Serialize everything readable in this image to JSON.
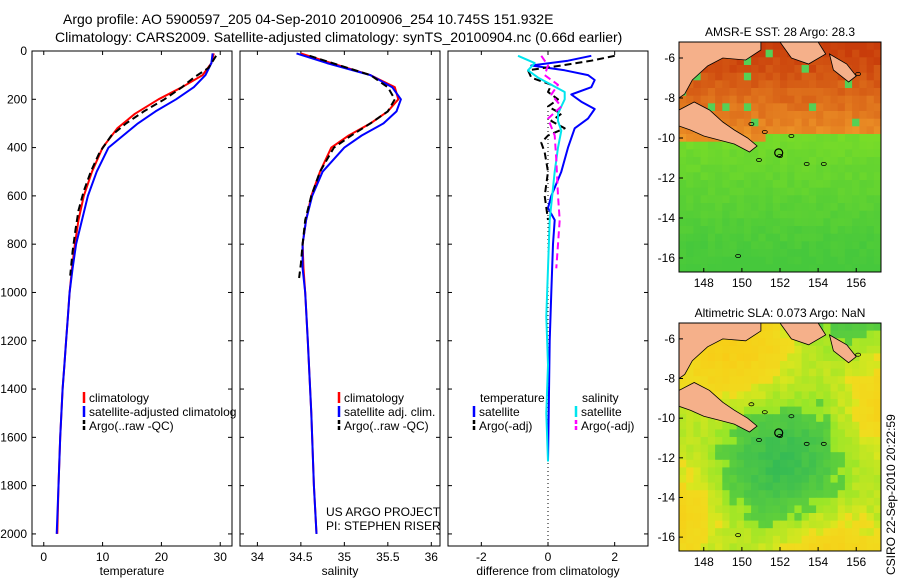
{
  "header": {
    "line1": "Argo profile: AO 5900597_205 04-Sep-2010 20100906_254 10.745S 151.932E",
    "line2": "Climatology: CARS2009. Satellite-adjusted climatology: synTS_20100904.nc (0.66d earlier)"
  },
  "colors": {
    "climatology": "#ff0000",
    "satellite": "#0000ff",
    "argo": "#000000",
    "sal_satellite": "#00e5ee",
    "sal_argo": "#ff00ff",
    "land": "#f5b08a"
  },
  "chart_data": [
    {
      "id": "temperature",
      "type": "line",
      "xlabel": "temperature",
      "ylabel": "",
      "xlim": [
        -2,
        32
      ],
      "ylim": [
        2050,
        0
      ],
      "xticks": [
        0,
        10,
        20,
        30
      ],
      "yticks": [
        0,
        200,
        400,
        600,
        800,
        1000,
        1200,
        1400,
        1600,
        1800,
        2000
      ],
      "legend": [
        "climatology",
        "satellite-adjusted climatology",
        "Argo(..raw -QC)"
      ],
      "series": [
        {
          "name": "climatology",
          "style": "solid",
          "color": "climatology",
          "x": [
            28.9,
            28.5,
            27.0,
            23.5,
            19.5,
            15.5,
            12.5,
            10.0,
            8.2,
            6.8,
            5.9,
            5.3,
            4.8,
            4.4,
            4.1,
            3.8,
            3.5,
            3.2,
            3.0,
            2.8,
            2.5,
            2.3
          ],
          "y": [
            10,
            50,
            100,
            150,
            200,
            260,
            320,
            400,
            500,
            600,
            700,
            800,
            900,
            1000,
            1100,
            1200,
            1300,
            1400,
            1500,
            1600,
            1800,
            2000
          ]
        },
        {
          "name": "satellite-adjusted climatology",
          "style": "solid",
          "color": "satellite",
          "x": [
            28.7,
            28.5,
            27.5,
            25.5,
            22.5,
            19.0,
            16.0,
            13.5,
            11.0,
            9.0,
            7.5,
            6.5,
            5.5,
            4.9,
            4.4,
            4.1,
            3.8,
            3.5,
            3.2,
            3.0,
            2.8,
            2.5,
            2.2
          ],
          "y": [
            10,
            50,
            100,
            150,
            200,
            250,
            300,
            350,
            400,
            500,
            600,
            700,
            800,
            900,
            1000,
            1100,
            1200,
            1300,
            1400,
            1500,
            1600,
            1800,
            2000
          ]
        },
        {
          "name": "Argo(..raw -QC)",
          "style": "dashed",
          "color": "argo",
          "x": [
            29.3,
            28.0,
            25.5,
            23.5,
            20.5,
            17.0,
            14.0,
            11.5,
            9.5,
            8.0,
            6.8,
            5.9,
            5.4,
            4.9,
            4.5
          ],
          "y": [
            20,
            70,
            110,
            150,
            200,
            250,
            300,
            350,
            420,
            500,
            580,
            660,
            740,
            830,
            930
          ]
        }
      ]
    },
    {
      "id": "salinity",
      "type": "line",
      "xlabel": "salinity",
      "ylabel": "",
      "xlim": [
        33.8,
        36.1
      ],
      "ylim": [
        2050,
        0
      ],
      "xticks": [
        34,
        34.5,
        35,
        35.5,
        36
      ],
      "legend": [
        "climatology",
        "satellite adj. clim.",
        "Argo(..raw -QC)"
      ],
      "annotation": [
        "US ARGO PROJECT",
        "PI: STEPHEN RISER"
      ],
      "series": [
        {
          "name": "climatology",
          "style": "solid",
          "color": "climatology",
          "x": [
            34.5,
            34.85,
            35.3,
            35.58,
            35.62,
            35.5,
            35.3,
            35.05,
            34.85,
            34.72,
            34.62,
            34.56,
            34.52,
            34.53,
            34.55,
            34.58,
            34.62,
            34.65,
            34.68
          ],
          "y": [
            10,
            50,
            100,
            150,
            200,
            250,
            300,
            350,
            400,
            500,
            600,
            700,
            800,
            900,
            1000,
            1200,
            1500,
            1800,
            2000
          ]
        },
        {
          "name": "satellite adj. clim.",
          "style": "solid",
          "color": "satellite",
          "x": [
            34.45,
            34.8,
            35.3,
            35.55,
            35.65,
            35.6,
            35.45,
            35.2,
            35.0,
            34.75,
            34.63,
            34.56,
            34.52,
            34.52,
            34.55,
            34.58,
            34.62,
            34.65,
            34.68
          ],
          "y": [
            10,
            50,
            100,
            150,
            200,
            250,
            300,
            350,
            400,
            500,
            600,
            700,
            800,
            900,
            1000,
            1200,
            1500,
            1800,
            2000
          ]
        },
        {
          "name": "Argo(..raw -QC)",
          "style": "dashed",
          "color": "argo",
          "x": [
            34.6,
            34.95,
            35.3,
            35.5,
            35.58,
            35.5,
            35.3,
            35.08,
            34.88,
            34.72,
            34.62,
            34.55,
            34.52,
            34.5,
            34.48
          ],
          "y": [
            20,
            60,
            100,
            150,
            200,
            250,
            300,
            350,
            400,
            500,
            600,
            700,
            800,
            880,
            940
          ]
        }
      ]
    },
    {
      "id": "difference",
      "type": "line",
      "xlabel": "difference from climatology",
      "ylabel": "",
      "xlim": [
        -3,
        3
      ],
      "ylim": [
        2050,
        0
      ],
      "xticks": [
        -2,
        0,
        2
      ],
      "legend": {
        "temperature_heading": "temperature",
        "salinity_heading": "salinity",
        "temperature": [
          "satellite",
          "Argo(-adj)"
        ],
        "salinity": [
          "satellite",
          "Argo(-adj)"
        ]
      },
      "series": [
        {
          "name": "temperature satellite",
          "style": "solid",
          "color": "satellite",
          "x": [
            1.3,
            0.6,
            -0.5,
            0.5,
            1.2,
            1.4,
            1.3,
            0.7,
            1.0,
            1.4,
            1.2,
            0.8,
            0.6,
            0.4,
            0.1,
            0.0,
            0.2,
            0.15,
            0.1,
            0.05,
            0.02,
            0.0
          ],
          "y": [
            20,
            40,
            60,
            80,
            100,
            120,
            150,
            180,
            210,
            240,
            280,
            320,
            400,
            500,
            600,
            650,
            700,
            800,
            1000,
            1200,
            1500,
            1700
          ]
        },
        {
          "name": "temperature Argo(-adj)",
          "style": "dashed",
          "color": "argo",
          "x": [
            2.0,
            1.3,
            0.4,
            -0.6,
            -0.5,
            0.1,
            0.0,
            0.3,
            0.0,
            0.4,
            0.1,
            0.5,
            0.0,
            -0.2,
            -0.1,
            0.0,
            -0.1,
            0.0
          ],
          "y": [
            20,
            40,
            60,
            80,
            110,
            140,
            170,
            200,
            230,
            260,
            290,
            320,
            350,
            380,
            420,
            500,
            600,
            700
          ]
        },
        {
          "name": "salinity satellite",
          "style": "solid",
          "color": "sal_satellite",
          "x": [
            -0.9,
            -0.4,
            -0.6,
            -0.3,
            0.1,
            0.5,
            0.5,
            0.4,
            0.3,
            0.3,
            0.4,
            0.3,
            0.2,
            0.05,
            0.0,
            -0.05,
            0.0,
            -0.05,
            0.0
          ],
          "y": [
            20,
            50,
            80,
            110,
            140,
            170,
            200,
            230,
            260,
            290,
            330,
            400,
            500,
            700,
            900,
            1100,
            1300,
            1500,
            1700
          ]
        },
        {
          "name": "salinity Argo(-adj)",
          "style": "dashed",
          "color": "sal_argo",
          "x": [
            -0.2,
            0.0,
            -0.1,
            0.3,
            0.1,
            0.4,
            0.0,
            0.2,
            0.25,
            0.3,
            0.35,
            0.3,
            0.25
          ],
          "y": [
            20,
            60,
            100,
            140,
            180,
            230,
            280,
            350,
            450,
            600,
            700,
            800,
            900
          ]
        }
      ]
    },
    {
      "id": "sst-map",
      "type": "heatmap",
      "title": "AMSR-E SST: 28 Argo: 28.3",
      "xlim": [
        146.7,
        157.3
      ],
      "ylim": [
        -16.7,
        -5.2
      ],
      "xticks": [
        148,
        150,
        152,
        154,
        156
      ],
      "yticks": [
        -6,
        -8,
        -10,
        -12,
        -14,
        -16
      ],
      "marker": {
        "lon": 151.932,
        "lat": -10.745
      }
    },
    {
      "id": "sla-map",
      "type": "heatmap",
      "title": "Altimetric SLA: 0.073 Argo: NaN",
      "xlim": [
        146.7,
        157.3
      ],
      "ylim": [
        -16.7,
        -5.2
      ],
      "xticks": [
        148,
        150,
        152,
        154,
        156
      ],
      "yticks": [
        -6,
        -8,
        -10,
        -12,
        -14,
        -16
      ],
      "marker": {
        "lon": 151.932,
        "lat": -10.745
      }
    }
  ],
  "legend_temperature": [
    "climatology",
    "satellite-adjusted climatolog",
    "Argo(..raw -QC)"
  ],
  "credit": "CSIRO 22-Sep-2010 20:22:59"
}
